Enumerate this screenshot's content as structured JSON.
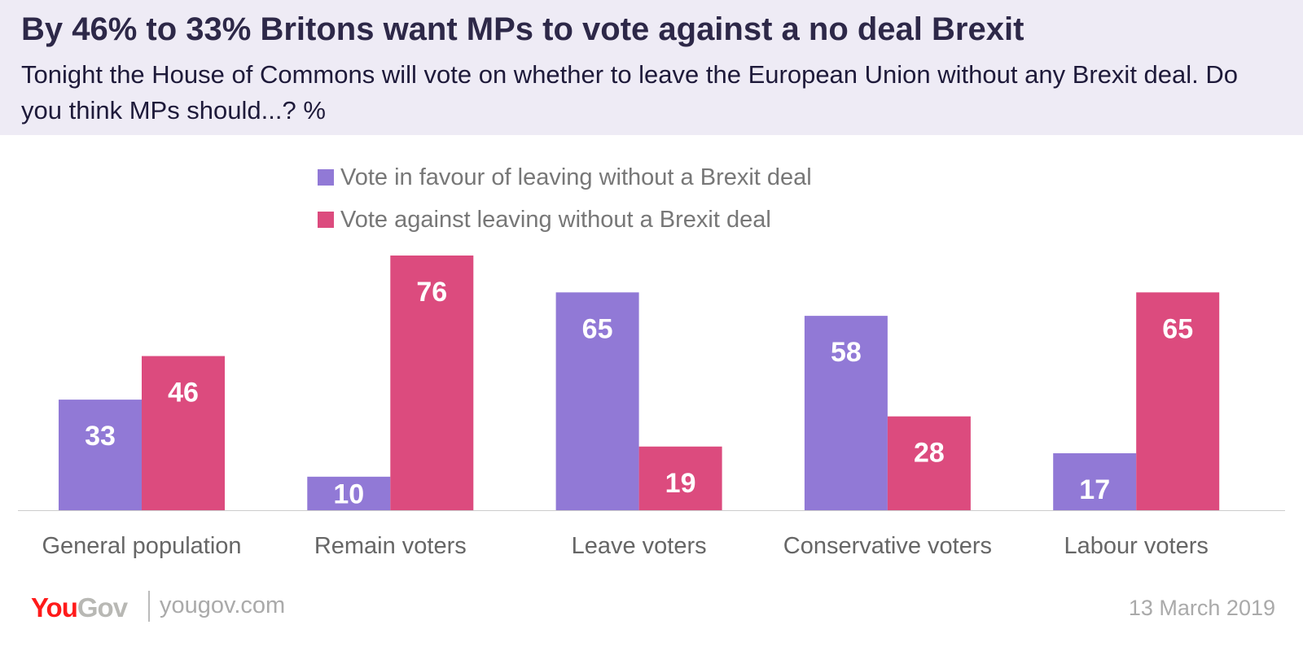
{
  "chart_data": {
    "type": "bar",
    "title": "By 46% to 33% Britons want MPs to vote against a no deal Brexit",
    "subtitle": "Tonight the House of Commons will vote on whether to leave the European Union without any Brexit deal. Do you think MPs should...? %",
    "categories": [
      "General population",
      "Remain voters",
      "Leave voters",
      "Conservative voters",
      "Labour voters"
    ],
    "series": [
      {
        "name": "Vote in favour of leaving without a Brexit deal",
        "color": "#9179d6",
        "values": [
          33,
          10,
          65,
          58,
          17
        ]
      },
      {
        "name": "Vote against leaving without a Brexit deal",
        "color": "#dc4b7e",
        "values": [
          46,
          76,
          19,
          28,
          65
        ]
      }
    ],
    "ylim": [
      0,
      76
    ],
    "grid": false,
    "legend": "top-center"
  },
  "footer": {
    "brand": "YouGov",
    "brand_you": "You",
    "brand_gov": "Gov",
    "site": "yougov.com",
    "date": "13 March 2019"
  }
}
